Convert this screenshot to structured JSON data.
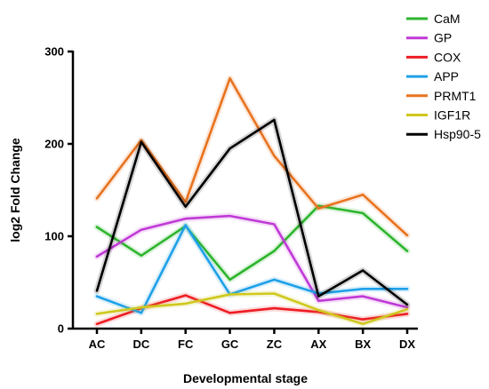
{
  "chart_data": {
    "type": "line",
    "categories": [
      "AC",
      "DC",
      "FC",
      "GC",
      "ZC",
      "AX",
      "BX",
      "DX"
    ],
    "xlabel": "Developmental stage",
    "ylabel": "log2 Fold Change",
    "ylim": [
      0,
      300
    ],
    "yticks": [
      0,
      100,
      200,
      300
    ],
    "grid": false,
    "legend_position": "top-right",
    "series": [
      {
        "name": "CaM",
        "color": "#2db52d",
        "values": [
          110,
          79,
          111,
          53,
          84,
          133,
          125,
          84
        ]
      },
      {
        "name": "GP",
        "color": "#c03ad6",
        "values": [
          78,
          107,
          119,
          122,
          113,
          30,
          35,
          23
        ]
      },
      {
        "name": "COX",
        "color": "#ee1c24",
        "values": [
          5,
          22,
          36,
          17,
          22,
          18,
          10,
          16
        ]
      },
      {
        "name": "APP",
        "color": "#1fa0e8",
        "values": [
          35,
          17,
          112,
          37,
          53,
          38,
          43,
          43
        ]
      },
      {
        "name": "PRMT1",
        "color": "#e8731f",
        "values": [
          141,
          204,
          137,
          271,
          187,
          130,
          145,
          101
        ]
      },
      {
        "name": "IGF1R",
        "color": "#cfc81e",
        "values": [
          16,
          23,
          27,
          37,
          38,
          20,
          5,
          21
        ]
      },
      {
        "name": "Hsp90-5",
        "color": "#000000",
        "values": [
          41,
          202,
          132,
          195,
          226,
          35,
          63,
          26
        ]
      }
    ]
  }
}
